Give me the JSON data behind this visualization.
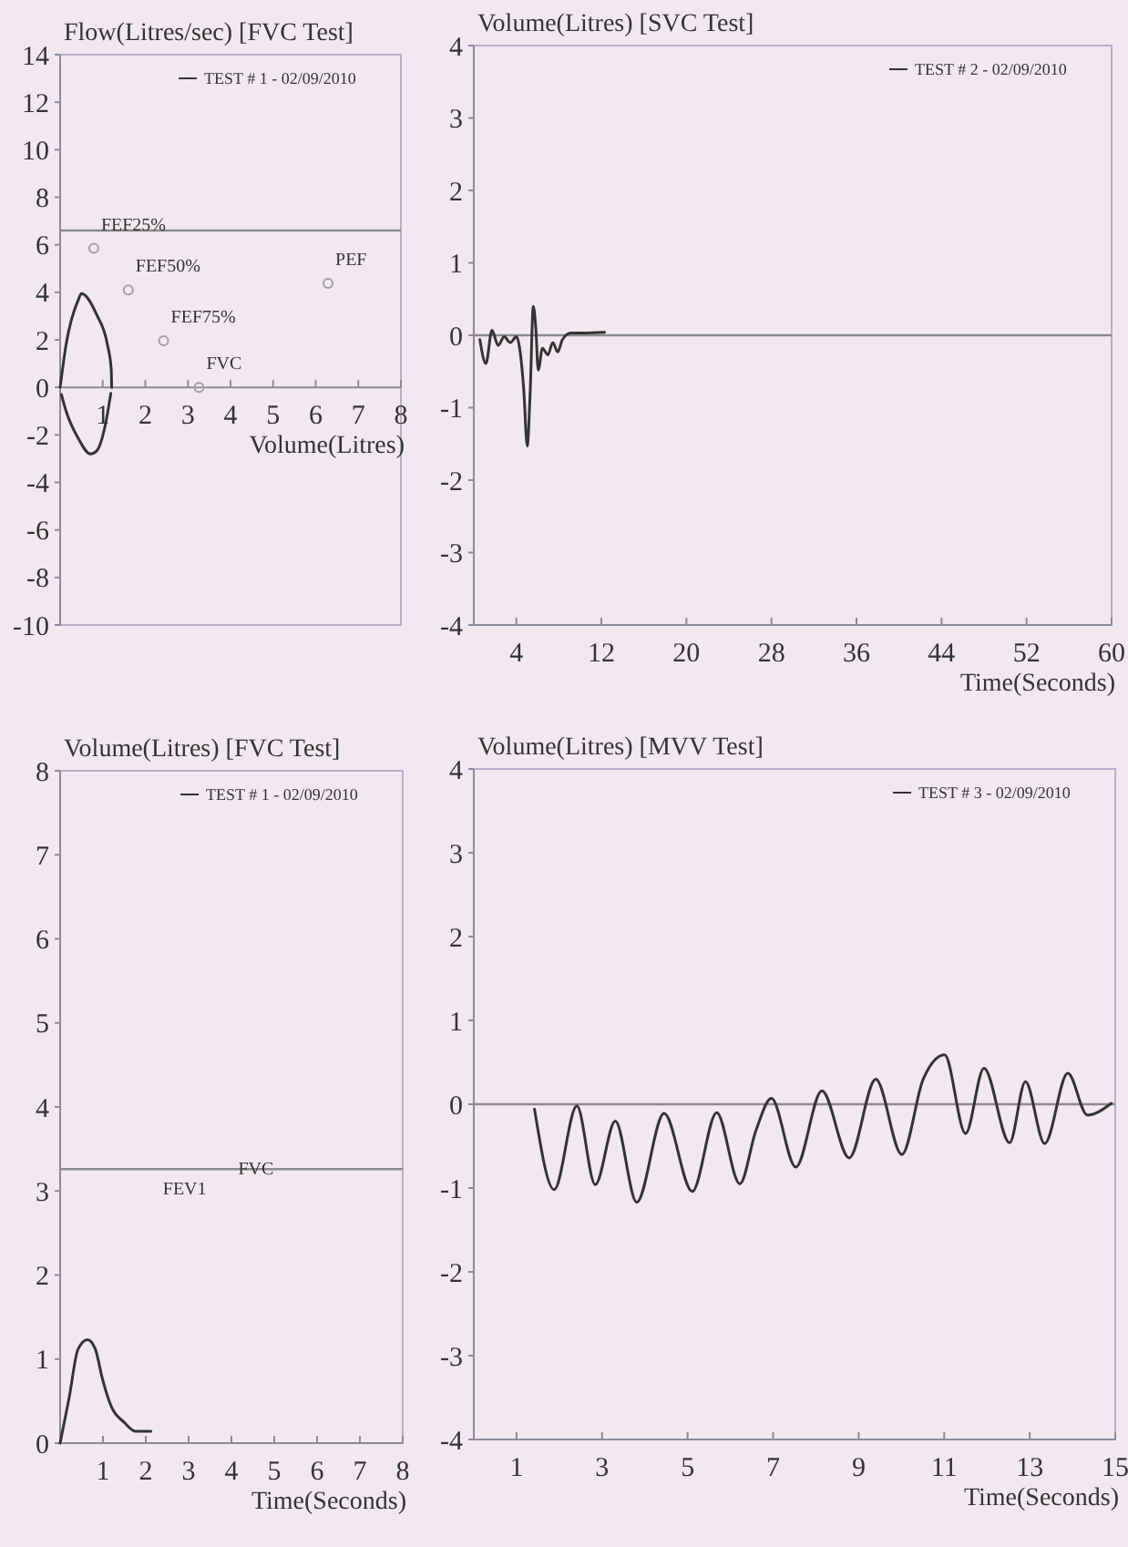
{
  "chart_data": [
    {
      "type": "line",
      "title": "Flow(Litres/sec) [FVC Test]",
      "xlabel": "Volume(Litres)",
      "xlim": [
        0,
        8
      ],
      "xticks": [
        1,
        2,
        3,
        4,
        5,
        6,
        7,
        8
      ],
      "ylim": [
        -10,
        14
      ],
      "yticks": [
        -10,
        -8,
        -6,
        -4,
        -2,
        0,
        2,
        4,
        6,
        8,
        10,
        12,
        14
      ],
      "legend": "top right",
      "ref_lines": [
        {
          "axis": "y",
          "value": 6.6,
          "color": "#8a8a8a"
        }
      ],
      "annotations": [
        {
          "text": "FEF25%",
          "x": 0.79,
          "y": 5.85
        },
        {
          "text": "FEF50%",
          "x": 1.6,
          "y": 4.1
        },
        {
          "text": "FEF75%",
          "x": 2.43,
          "y": 1.96
        },
        {
          "text": "FVC",
          "x": 3.26,
          "y": 0
        },
        {
          "text": "PEF",
          "x": 6.29,
          "y": 4.38
        }
      ],
      "series": [
        {
          "name": "TEST # 1 - 02/09/2010",
          "color": "#333333",
          "x": [
            0,
            0.14,
            0.43,
            0.5,
            0.86,
            1.11,
            1.2,
            1.21
          ],
          "values": [
            0,
            1.8,
            3.7,
            3.95,
            3.05,
            1.8,
            0.76,
            0
          ]
        },
        {
          "color": "#333333",
          "x": [
            0.03,
            0.14,
            0.43,
            0.71,
            0.86,
            1.07,
            1.19
          ],
          "values": [
            -0.3,
            -1.0,
            -2.16,
            -2.8,
            -2.67,
            -1.5,
            -0.25
          ]
        },
        {
          "type": "scatter",
          "color": "#a0a0a0",
          "marker": "circle",
          "x": [
            0.79,
            1.6,
            2.43,
            3.26,
            6.29
          ],
          "values": [
            5.85,
            4.1,
            1.96,
            0,
            4.38
          ]
        }
      ]
    },
    {
      "type": "line",
      "title": "Volume(Litres) [SVC Test]",
      "xlabel": "Time(Seconds)",
      "xlim": [
        0,
        60
      ],
      "xticks": [
        4,
        12,
        20,
        28,
        36,
        44,
        52,
        60
      ],
      "ylim": [
        -4,
        4
      ],
      "yticks": [
        -4,
        -3,
        -2,
        -1,
        0,
        1,
        2,
        3,
        4
      ],
      "legend": "top right",
      "ref_lines": [
        {
          "axis": "y",
          "value": 0,
          "color": "#8a8a8a"
        }
      ],
      "series": [
        {
          "name": "TEST # 2 - 02/09/2010",
          "color": "#333333",
          "x": [
            0.57,
            1.14,
            1.71,
            2.29,
            2.86,
            3.43,
            4,
            4.69,
            5.03,
            5.3,
            5.6,
            5.83,
            6.06,
            6.46,
            6.97,
            7.43,
            7.89,
            8.34,
            9.14,
            10.29,
            12.3
          ],
          "values": [
            -0.06,
            -0.39,
            0.07,
            -0.14,
            -0.02,
            -0.1,
            -0.02,
            -0.73,
            -1.53,
            -0.8,
            0.4,
            0.11,
            -0.48,
            -0.18,
            -0.27,
            -0.1,
            -0.23,
            -0.06,
            0.03,
            0.03,
            0.04
          ]
        }
      ]
    },
    {
      "type": "line",
      "title": "Volume(Litres)  [FVC Test]",
      "xlabel": "Time(Seconds)",
      "xlim": [
        0,
        8
      ],
      "xticks": [
        1,
        2,
        3,
        4,
        5,
        6,
        7,
        8
      ],
      "ylim": [
        0,
        8
      ],
      "yticks": [
        0,
        1,
        2,
        3,
        4,
        5,
        6,
        7,
        8
      ],
      "legend": "top right",
      "ref_lines": [
        {
          "axis": "y",
          "value": 3.26,
          "color": "#8a8a8a"
        }
      ],
      "annotations": [
        "FEV1",
        "FVC"
      ],
      "series": [
        {
          "name": "TEST # 1 - 02/09/2010",
          "color": "#333333",
          "x": [
            0,
            0.21,
            0.42,
            0.64,
            0.82,
            0.99,
            1.2,
            1.49,
            1.77,
            2.12
          ],
          "values": [
            0,
            0.54,
            1.12,
            1.23,
            1.12,
            0.76,
            0.43,
            0.25,
            0.14,
            0.14
          ]
        }
      ]
    },
    {
      "type": "line",
      "title": "Volume(Litres) [MVV Test]",
      "xlabel": "Time(Seconds)",
      "xlim": [
        0,
        15
      ],
      "xticks": [
        1,
        3,
        5,
        7,
        9,
        11,
        13,
        15
      ],
      "ylim": [
        -4,
        4
      ],
      "yticks": [
        -4,
        -3,
        -2,
        -1,
        0,
        1,
        2,
        3,
        4
      ],
      "legend": "top right",
      "ref_lines": [
        {
          "axis": "y",
          "value": 0,
          "color": "#8a8a8a"
        }
      ],
      "series": [
        {
          "name": "TEST # 3 - 02/09/2010",
          "color": "#333333",
          "x": [
            1.42,
            1.88,
            2.41,
            2.84,
            3.31,
            3.81,
            4.45,
            5.11,
            5.68,
            6.22,
            6.6,
            6.96,
            7.53,
            8.14,
            8.78,
            9.4,
            10.01,
            10.51,
            11.01,
            11.5,
            11.93,
            12.53,
            12.9,
            13.35,
            13.89,
            14.35,
            14.91
          ],
          "values": [
            -0.06,
            -1.02,
            -0.02,
            -0.96,
            -0.2,
            -1.17,
            -0.11,
            -1.04,
            -0.1,
            -0.95,
            -0.31,
            0.07,
            -0.75,
            0.16,
            -0.64,
            0.3,
            -0.6,
            0.3,
            0.59,
            -0.35,
            0.43,
            -0.46,
            0.27,
            -0.47,
            0.37,
            -0.13,
            0.01
          ]
        }
      ]
    }
  ]
}
